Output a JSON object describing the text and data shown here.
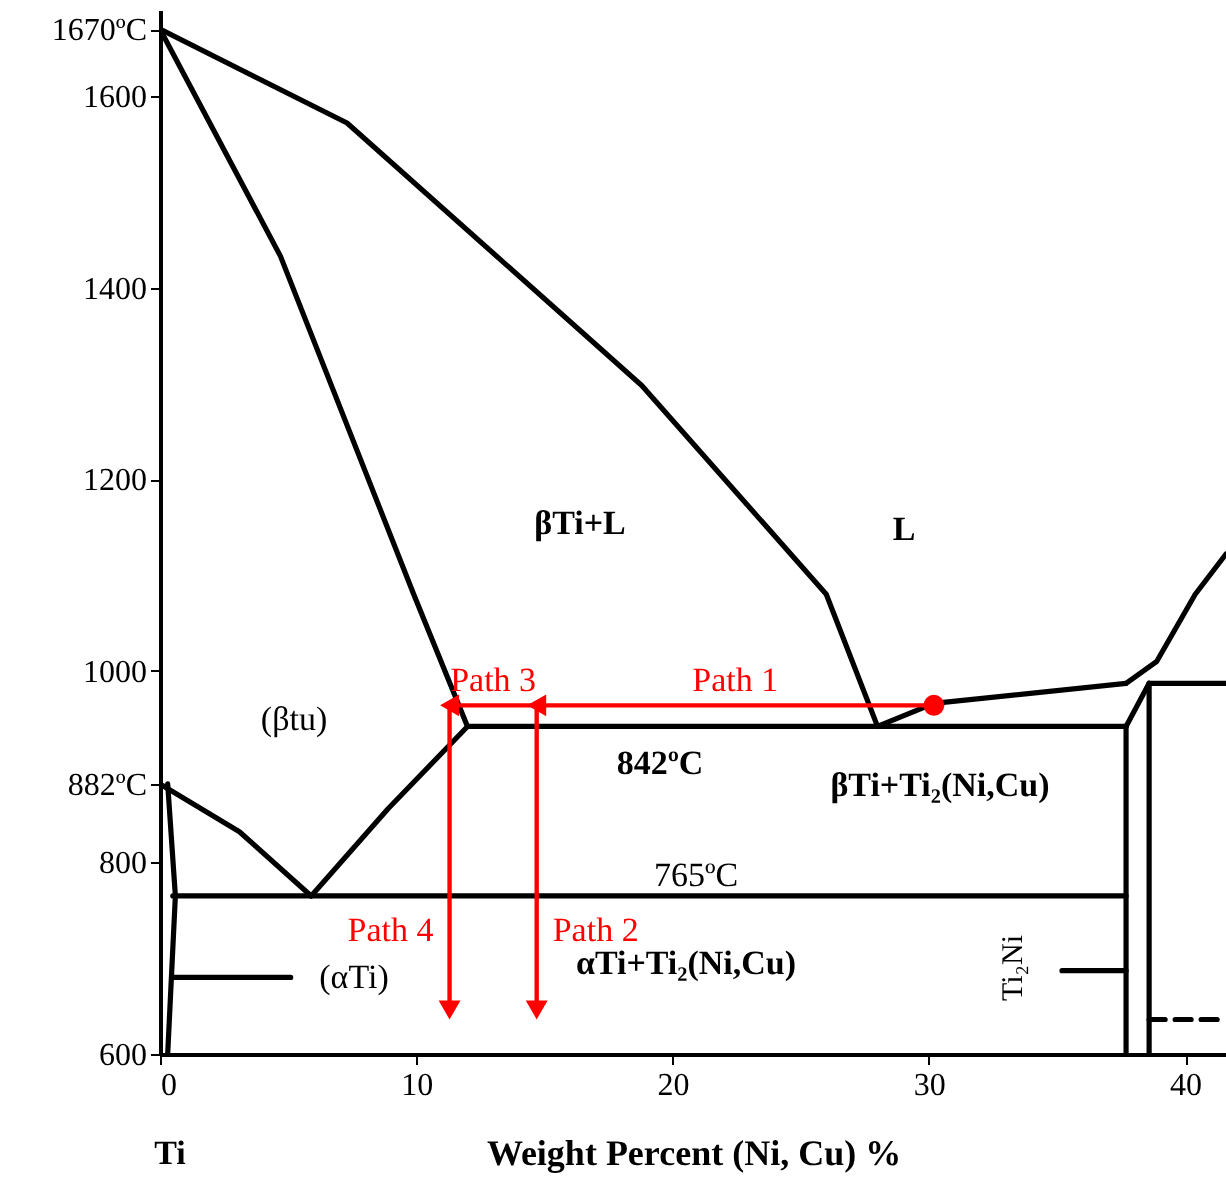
{
  "chart_data": {
    "type": "line",
    "xlabel": "Weight Percent (Ni, Cu) %",
    "xlim": [
      0,
      41.6
    ],
    "ylim": [
      600,
      1690
    ],
    "xticks": [
      0,
      10,
      20,
      30,
      40
    ],
    "yticks": [
      600,
      800,
      {
        "value": 882,
        "label": "882ºC"
      },
      1000,
      1200,
      1400,
      1600,
      {
        "value": 1670,
        "label": "1670ºC"
      }
    ],
    "series": [
      {
        "color": "#000000",
        "x": [
          0,
          7.3,
          18.8,
          26,
          28
        ],
        "values": [
          1670,
          1572,
          1298,
          1080,
          942
        ]
      },
      {
        "color": "#000000",
        "x": [
          0,
          4.7,
          9.9,
          12
        ],
        "values": [
          1670,
          1433,
          1080,
          942
        ]
      },
      {
        "color": "#000000",
        "x": [
          12,
          37.7
        ],
        "values": [
          942,
          942
        ]
      },
      {
        "color": "#000000",
        "x": [
          28,
          30.2,
          37.7
        ],
        "values": [
          942,
          966,
          987
        ]
      },
      {
        "color": "#000000",
        "x": [
          37.7,
          38.9,
          40.4,
          41.6
        ],
        "values": [
          987,
          1010,
          1080,
          1122
        ]
      },
      {
        "color": "#000000",
        "x": [
          38.6,
          41.6
        ],
        "values": [
          987,
          987
        ]
      },
      {
        "color": "#000000",
        "x": [
          37.7,
          38.6
        ],
        "values": [
          942,
          987
        ]
      },
      {
        "color": "#000000",
        "x": [
          37.7,
          37.7
        ],
        "values": [
          942,
          600
        ]
      },
      {
        "color": "#000000",
        "x": [
          38.6,
          38.6
        ],
        "values": [
          987,
          600
        ]
      },
      {
        "color": "#000000",
        "x": [
          0.5,
          37.7
        ],
        "values": [
          765,
          765
        ]
      },
      {
        "color": "#000000",
        "x": [
          0,
          3.1,
          5.9
        ],
        "values": [
          882,
          832,
          765
        ]
      },
      {
        "color": "#000000",
        "x": [
          5.9,
          8.9,
          12
        ],
        "values": [
          765,
          856,
          942
        ]
      },
      {
        "color": "#000000",
        "x": [
          0.3,
          0.6,
          0.3
        ],
        "values": [
          882,
          765,
          600
        ]
      },
      {
        "color": "#000000",
        "x": [
          38.6,
          41.6
        ],
        "values": [
          636,
          636
        ],
        "line_style": "dashed"
      },
      {
        "color": "#000000",
        "x": [
          5.1,
          0.5
        ],
        "values": [
          680,
          680
        ]
      },
      {
        "color": "#000000",
        "x": [
          35.2,
          37.7
        ],
        "values": [
          687,
          687
        ]
      },
      {
        "name": "Path 1",
        "color": "#ff0000",
        "x": [
          30.2,
          14.7
        ],
        "values": [
          964,
          964
        ]
      },
      {
        "name": "Path 3",
        "color": "#ff0000",
        "x": [
          14.7,
          11.3
        ],
        "values": [
          964,
          964
        ]
      },
      {
        "name": "Path 2",
        "color": "#ff0000",
        "x": [
          14.7,
          14.7
        ],
        "values": [
          964,
          646
        ]
      },
      {
        "name": "Path 4",
        "color": "#ff0000",
        "x": [
          11.3,
          11.3
        ],
        "values": [
          964,
          646
        ]
      },
      {
        "type": "scatter",
        "color": "#ff0000",
        "x": [
          30.2
        ],
        "values": [
          964
        ]
      }
    ],
    "annotations": [
      "L",
      "βTi+L",
      "(βtu)",
      "842ºC",
      "βTi+Ti₂(Ni,Cu)",
      "765ºC",
      "αTi+Ti₂(Ni,Cu)",
      "(αTi)",
      "Ti₂Ni",
      "Ti"
    ]
  }
}
